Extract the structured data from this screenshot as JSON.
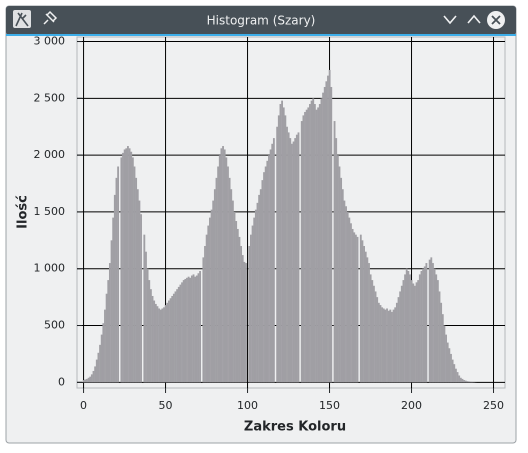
{
  "window_title": "Histogram (Szary)",
  "chart_data": {
    "type": "histogram",
    "x_label": "Zakres Koloru",
    "y_label": "Ilość",
    "color": "#a09fa4",
    "grid": true,
    "xlim": [
      -4,
      257
    ],
    "ylim": [
      -50,
      3040
    ],
    "xticks": [
      0,
      50,
      100,
      150,
      200,
      250
    ],
    "yticks": [
      0,
      500,
      {
        "value": 1000,
        "label": "1 000"
      },
      {
        "value": 1500,
        "label": "1 500"
      },
      {
        "value": 2000,
        "label": "2 000"
      },
      {
        "value": 2500,
        "label": "2 500"
      },
      {
        "value": 3000,
        "label": "3 000"
      }
    ],
    "values": [
      20,
      25,
      30,
      40,
      50,
      70,
      100,
      140,
      200,
      260,
      330,
      420,
      520,
      640,
      780,
      900,
      1050,
      1250,
      1450,
      1650,
      1800,
      1900,
      0,
      1980,
      2020,
      2050,
      2060,
      2080,
      2060,
      2030,
      1980,
      1900,
      1800,
      1700,
      1600,
      1480,
      0,
      1300,
      1150,
      1000,
      900,
      820,
      760,
      720,
      690,
      670,
      650,
      640,
      650,
      660,
      680,
      700,
      720,
      740,
      760,
      780,
      800,
      820,
      840,
      860,
      880,
      900,
      910,
      920,
      930,
      920,
      940,
      950,
      930,
      940,
      960,
      980,
      0,
      1100,
      1200,
      1300,
      1380,
      1450,
      1520,
      1600,
      1700,
      1800,
      1900,
      2000,
      2060,
      2080,
      2050,
      1980,
      1900,
      1800,
      1700,
      1600,
      1500,
      1420,
      1350,
      1280,
      1200,
      1120,
      1060,
      1050,
      0,
      1200,
      1300,
      1380,
      1450,
      1520,
      1580,
      1650,
      1700,
      1780,
      1850,
      1900,
      1950,
      2000,
      2050,
      2100,
      2150,
      0,
      2250,
      2350,
      2450,
      2480,
      2420,
      2350,
      2250,
      2200,
      2150,
      2100,
      2120,
      2150,
      2180,
      2200,
      0,
      2300,
      2350,
      2380,
      2400,
      2420,
      2450,
      2480,
      2500,
      2450,
      2400,
      2420,
      2450,
      2500,
      2550,
      2600,
      2650,
      2700,
      2750,
      2600,
      0,
      2300,
      2150,
      2000,
      1900,
      1800,
      1700,
      1600,
      1550,
      1500,
      1450,
      1400,
      1350,
      1320,
      1300,
      1280,
      0,
      1300,
      1250,
      1200,
      1150,
      1100,
      1050,
      950,
      900,
      850,
      800,
      750,
      700,
      680,
      660,
      650,
      640,
      650,
      630,
      640,
      620,
      640,
      660,
      700,
      750,
      800,
      850,
      900,
      950,
      1000,
      980,
      950,
      900,
      870,
      850,
      880,
      900,
      950,
      980,
      1000,
      1020,
      1050,
      0,
      1080,
      1100,
      1050,
      1000,
      950,
      900,
      800,
      700,
      600,
      500,
      420,
      350,
      300,
      250,
      200,
      160,
      120,
      90,
      60,
      40,
      30,
      20,
      15,
      10,
      8,
      5,
      3,
      2,
      1,
      0,
      0,
      0,
      0,
      0,
      0,
      0,
      0,
      0,
      0,
      0,
      0,
      0,
      0,
      0,
      0
    ]
  }
}
